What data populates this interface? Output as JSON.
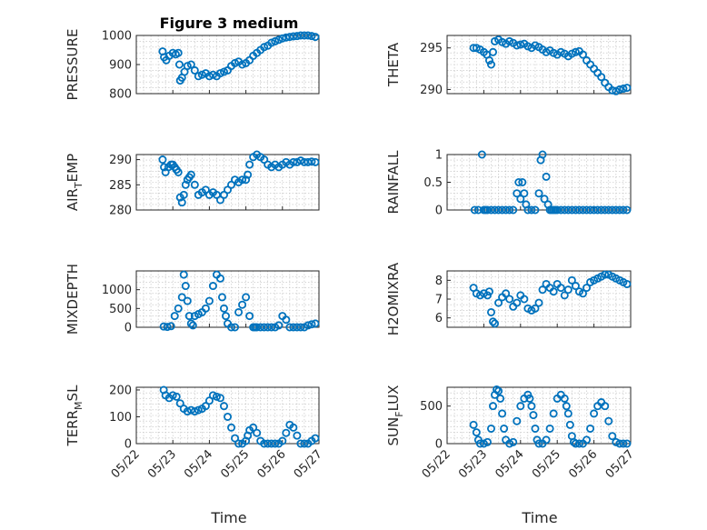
{
  "figure": {
    "title": "Figure 3 medium",
    "marker_color": "#0072BD",
    "xlabel": "Time"
  },
  "chart_data": [
    {
      "type": "scatter",
      "ylabel": "PRESSURE",
      "xlim": [
        "05/22",
        "05/27"
      ],
      "ylim": [
        800,
        1000
      ],
      "yticks": [
        800,
        900,
        1000
      ],
      "xticks": [
        "05/22",
        "05/23",
        "05/24",
        "05/25",
        "05/26",
        "05/27"
      ],
      "x": [
        0.72,
        0.76,
        0.82,
        0.9,
        1.0,
        1.08,
        1.15,
        1.18,
        1.2,
        1.25,
        1.32,
        1.4,
        1.5,
        1.6,
        1.7,
        1.8,
        1.9,
        2.0,
        2.1,
        2.2,
        2.3,
        2.4,
        2.5,
        2.6,
        2.7,
        2.8,
        2.9,
        3.0,
        3.1,
        3.2,
        3.3,
        3.4,
        3.5,
        3.6,
        3.7,
        3.8,
        3.9,
        4.0,
        4.1,
        4.2,
        4.3,
        4.4,
        4.5,
        4.6,
        4.7,
        4.8,
        4.9
      ],
      "y": [
        945,
        925,
        915,
        930,
        940,
        935,
        940,
        900,
        845,
        855,
        875,
        895,
        900,
        880,
        860,
        865,
        870,
        860,
        865,
        860,
        870,
        875,
        880,
        895,
        905,
        910,
        900,
        905,
        915,
        930,
        940,
        950,
        960,
        965,
        975,
        980,
        985,
        990,
        993,
        995,
        997,
        998,
        1000,
        1000,
        1000,
        998,
        995
      ]
    },
    {
      "type": "scatter",
      "ylabel": "THETA",
      "xlim": [
        "05/22",
        "05/27"
      ],
      "ylim": [
        289.5,
        296.5
      ],
      "yticks": [
        290,
        295
      ],
      "xticks": [
        "05/22",
        "05/23",
        "05/24",
        "05/25",
        "05/26",
        "05/27"
      ],
      "x": [
        0.72,
        0.8,
        0.9,
        1.0,
        1.08,
        1.15,
        1.2,
        1.25,
        1.3,
        1.4,
        1.5,
        1.6,
        1.7,
        1.8,
        1.9,
        2.0,
        2.1,
        2.2,
        2.3,
        2.4,
        2.5,
        2.6,
        2.7,
        2.8,
        2.9,
        3.0,
        3.1,
        3.2,
        3.3,
        3.4,
        3.5,
        3.6,
        3.7,
        3.8,
        3.9,
        4.0,
        4.1,
        4.2,
        4.3,
        4.4,
        4.5,
        4.6,
        4.7,
        4.8,
        4.9
      ],
      "y": [
        295.0,
        295.0,
        294.8,
        294.5,
        294.2,
        293.5,
        293.0,
        294.5,
        295.8,
        296.0,
        295.7,
        295.5,
        295.8,
        295.6,
        295.3,
        295.4,
        295.5,
        295.2,
        295.0,
        295.3,
        295.1,
        294.8,
        294.5,
        294.7,
        294.4,
        294.2,
        294.5,
        294.3,
        294.0,
        294.3,
        294.5,
        294.6,
        294.2,
        293.5,
        293.0,
        292.5,
        292.0,
        291.5,
        290.8,
        290.3,
        289.9,
        289.8,
        290.0,
        290.1,
        290.2
      ]
    },
    {
      "type": "scatter",
      "ylabel": "AIR_TEMP",
      "xlim": [
        "05/22",
        "05/27"
      ],
      "ylim": [
        280,
        291
      ],
      "yticks": [
        280,
        285,
        290
      ],
      "xticks": [
        "05/22",
        "05/23",
        "05/24",
        "05/25",
        "05/26",
        "05/27"
      ],
      "x": [
        0.72,
        0.76,
        0.8,
        0.88,
        0.95,
        1.0,
        1.05,
        1.1,
        1.15,
        1.2,
        1.25,
        1.3,
        1.35,
        1.4,
        1.45,
        1.5,
        1.6,
        1.7,
        1.8,
        1.9,
        2.0,
        2.1,
        2.2,
        2.3,
        2.4,
        2.5,
        2.6,
        2.7,
        2.8,
        2.9,
        3.0,
        3.05,
        3.1,
        3.2,
        3.3,
        3.4,
        3.5,
        3.6,
        3.7,
        3.8,
        3.9,
        4.0,
        4.1,
        4.2,
        4.3,
        4.4,
        4.5,
        4.6,
        4.7,
        4.8,
        4.9
      ],
      "y": [
        290.0,
        288.5,
        287.5,
        288.5,
        289.0,
        289.0,
        288.5,
        288.0,
        287.5,
        282.5,
        281.5,
        283.0,
        285.0,
        286.0,
        286.5,
        287.0,
        285.0,
        283.0,
        283.5,
        284.0,
        283.0,
        283.5,
        283.0,
        282.0,
        283.0,
        284.0,
        285.0,
        286.0,
        285.5,
        286.0,
        286.0,
        287.0,
        289.0,
        290.5,
        291.0,
        290.5,
        290.0,
        289.0,
        288.5,
        289.0,
        288.5,
        289.0,
        289.5,
        289.0,
        289.5,
        289.5,
        289.8,
        289.5,
        289.5,
        289.6,
        289.5
      ]
    },
    {
      "type": "scatter",
      "ylabel": "RAINFALL",
      "xlim": [
        "05/22",
        "05/27"
      ],
      "ylim": [
        0,
        1
      ],
      "yticks": [
        0,
        0.5,
        1
      ],
      "xticks": [
        "05/22",
        "05/23",
        "05/24",
        "05/25",
        "05/26",
        "05/27"
      ],
      "x": [
        0.75,
        0.85,
        0.95,
        1.0,
        1.05,
        1.1,
        1.2,
        1.3,
        1.4,
        1.5,
        1.6,
        1.7,
        1.8,
        1.9,
        1.95,
        2.0,
        2.05,
        2.1,
        2.15,
        2.2,
        2.3,
        2.4,
        2.5,
        2.55,
        2.6,
        2.65,
        2.7,
        2.75,
        2.8,
        2.85,
        2.9,
        2.95,
        3.0,
        3.1,
        3.2,
        3.3,
        3.4,
        3.5,
        3.6,
        3.7,
        3.8,
        3.9,
        4.0,
        4.1,
        4.2,
        4.3,
        4.4,
        4.5,
        4.6,
        4.7,
        4.8,
        4.9
      ],
      "y": [
        0,
        0,
        1.0,
        0,
        0,
        0,
        0,
        0,
        0,
        0,
        0,
        0,
        0,
        0.3,
        0.5,
        0.2,
        0.5,
        0.3,
        0.1,
        0,
        0,
        0,
        0.3,
        0.9,
        1.0,
        0.2,
        0.6,
        0.1,
        0,
        0,
        0,
        0,
        0,
        0,
        0,
        0,
        0,
        0,
        0,
        0,
        0,
        0,
        0,
        0,
        0,
        0,
        0,
        0,
        0,
        0,
        0,
        0
      ]
    },
    {
      "type": "scatter",
      "ylabel": "MIXDEPTH",
      "xlim": [
        "05/22",
        "05/27"
      ],
      "ylim": [
        0,
        1500
      ],
      "yticks": [
        0,
        500,
        1000
      ],
      "xticks": [
        "05/22",
        "05/23",
        "05/24",
        "05/25",
        "05/26",
        "05/27"
      ],
      "x": [
        0.75,
        0.85,
        0.95,
        1.05,
        1.15,
        1.25,
        1.3,
        1.35,
        1.4,
        1.45,
        1.5,
        1.55,
        1.6,
        1.7,
        1.8,
        1.9,
        2.0,
        2.1,
        2.2,
        2.3,
        2.35,
        2.4,
        2.45,
        2.5,
        2.6,
        2.7,
        2.8,
        2.9,
        3.0,
        3.1,
        3.2,
        3.25,
        3.3,
        3.4,
        3.5,
        3.6,
        3.7,
        3.8,
        3.9,
        4.0,
        4.1,
        4.2,
        4.3,
        4.4,
        4.5,
        4.6,
        4.7,
        4.8,
        4.9
      ],
      "y": [
        20,
        10,
        30,
        300,
        500,
        800,
        1400,
        1100,
        700,
        300,
        100,
        50,
        300,
        350,
        400,
        500,
        700,
        1100,
        1400,
        1300,
        800,
        500,
        300,
        100,
        0,
        0,
        400,
        600,
        800,
        300,
        0,
        0,
        0,
        0,
        0,
        0,
        0,
        0,
        50,
        300,
        200,
        0,
        0,
        0,
        0,
        0,
        50,
        80,
        100
      ]
    },
    {
      "type": "scatter",
      "ylabel": "H2OMIXRA",
      "xlim": [
        "05/22",
        "05/27"
      ],
      "ylim": [
        5.5,
        8.5
      ],
      "yticks": [
        6,
        7,
        8
      ],
      "xticks": [
        "05/22",
        "05/23",
        "05/24",
        "05/25",
        "05/26",
        "05/27"
      ],
      "x": [
        0.72,
        0.8,
        0.9,
        1.0,
        1.1,
        1.15,
        1.2,
        1.25,
        1.3,
        1.4,
        1.5,
        1.6,
        1.7,
        1.8,
        1.9,
        2.0,
        2.1,
        2.2,
        2.3,
        2.4,
        2.5,
        2.6,
        2.7,
        2.8,
        2.9,
        3.0,
        3.1,
        3.2,
        3.3,
        3.4,
        3.5,
        3.6,
        3.7,
        3.8,
        3.9,
        4.0,
        4.1,
        4.2,
        4.3,
        4.4,
        4.5,
        4.6,
        4.7,
        4.8,
        4.9
      ],
      "y": [
        7.6,
        7.3,
        7.2,
        7.3,
        7.2,
        7.4,
        6.3,
        5.8,
        5.7,
        6.8,
        7.1,
        7.3,
        7.0,
        6.6,
        6.8,
        7.2,
        7.0,
        6.5,
        6.4,
        6.5,
        6.8,
        7.5,
        7.8,
        7.6,
        7.4,
        7.8,
        7.6,
        7.2,
        7.5,
        8.0,
        7.7,
        7.4,
        7.3,
        7.6,
        7.9,
        8.0,
        8.1,
        8.2,
        8.3,
        8.3,
        8.2,
        8.1,
        8.0,
        7.9,
        7.8
      ]
    },
    {
      "type": "scatter",
      "ylabel": "TERR_MSL",
      "xlim": [
        "05/22",
        "05/27"
      ],
      "ylim": [
        0,
        210
      ],
      "yticks": [
        0,
        100,
        200
      ],
      "xticks": [
        "05/22",
        "05/23",
        "05/24",
        "05/25",
        "05/26",
        "05/27"
      ],
      "x": [
        0.75,
        0.8,
        0.9,
        1.0,
        1.1,
        1.2,
        1.3,
        1.4,
        1.5,
        1.6,
        1.7,
        1.8,
        1.9,
        2.0,
        2.1,
        2.2,
        2.3,
        2.4,
        2.5,
        2.6,
        2.7,
        2.8,
        2.9,
        3.0,
        3.05,
        3.1,
        3.2,
        3.3,
        3.4,
        3.5,
        3.6,
        3.7,
        3.8,
        3.9,
        4.0,
        4.1,
        4.2,
        4.3,
        4.4,
        4.5,
        4.6,
        4.7,
        4.8,
        4.9
      ],
      "y": [
        200,
        180,
        170,
        180,
        175,
        150,
        130,
        120,
        125,
        120,
        125,
        130,
        140,
        160,
        180,
        175,
        170,
        140,
        100,
        60,
        20,
        0,
        0,
        10,
        30,
        50,
        60,
        40,
        10,
        0,
        0,
        0,
        0,
        0,
        10,
        40,
        70,
        60,
        30,
        0,
        0,
        0,
        10,
        20
      ]
    },
    {
      "type": "scatter",
      "ylabel": "SUN_FLUX",
      "xlim": [
        "05/22",
        "05/27"
      ],
      "ylim": [
        0,
        750
      ],
      "yticks": [
        0,
        500
      ],
      "xticks": [
        "05/22",
        "05/23",
        "05/24",
        "05/25",
        "05/26",
        "05/27"
      ],
      "x": [
        0.72,
        0.8,
        0.85,
        0.9,
        1.0,
        1.1,
        1.2,
        1.25,
        1.3,
        1.35,
        1.4,
        1.45,
        1.5,
        1.55,
        1.6,
        1.7,
        1.8,
        1.9,
        2.0,
        2.1,
        2.2,
        2.25,
        2.3,
        2.35,
        2.4,
        2.45,
        2.5,
        2.6,
        2.7,
        2.8,
        2.9,
        3.0,
        3.1,
        3.2,
        3.25,
        3.3,
        3.35,
        3.4,
        3.45,
        3.5,
        3.6,
        3.7,
        3.8,
        3.9,
        4.0,
        4.1,
        4.2,
        4.3,
        4.4,
        4.5,
        4.6,
        4.7,
        4.8,
        4.9
      ],
      "y": [
        250,
        150,
        50,
        0,
        0,
        20,
        200,
        500,
        650,
        720,
        700,
        600,
        400,
        200,
        50,
        0,
        20,
        300,
        500,
        600,
        650,
        600,
        500,
        380,
        200,
        50,
        0,
        0,
        50,
        200,
        400,
        600,
        650,
        600,
        500,
        400,
        250,
        100,
        20,
        0,
        0,
        0,
        50,
        200,
        400,
        500,
        550,
        500,
        300,
        100,
        20,
        0,
        0,
        0
      ]
    }
  ]
}
